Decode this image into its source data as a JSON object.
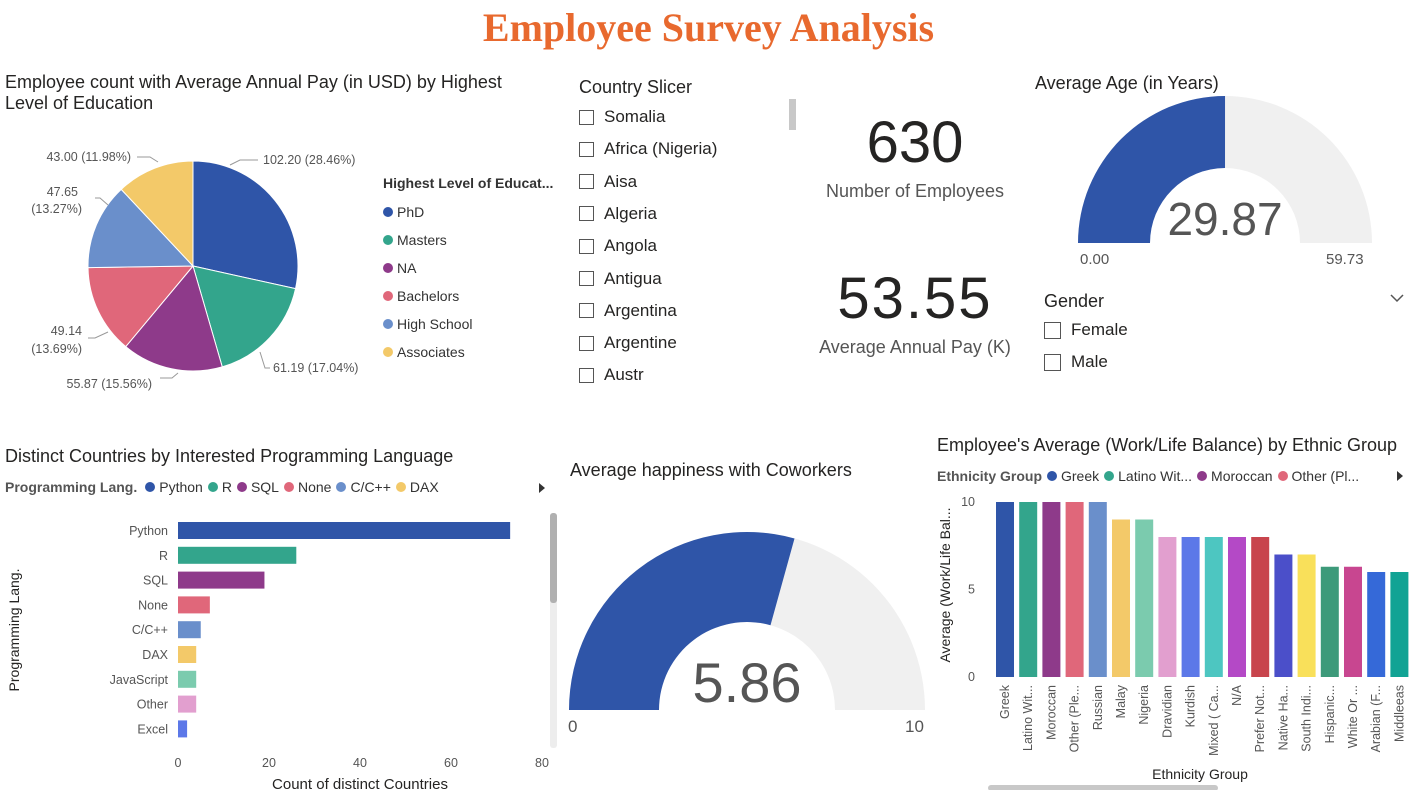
{
  "page": {
    "title": "Employee Survey Analysis"
  },
  "education_pie": {
    "title_line1": "Employee count with Average Annual Pay (in USD) by Highest",
    "title_line2": "Level of Education",
    "legend_title": "Highest Level of Educat...",
    "labels": [
      "102.20 (28.46%)",
      "61.19 (17.04%)",
      "55.87 (15.56%)",
      "49.14",
      "(13.69%)",
      "47.65",
      "(13.27%)",
      "43.00 (11.98%)"
    ]
  },
  "country_slicer": {
    "title": "Country Slicer",
    "items": [
      "Somalia",
      "Africa (Nigeria)",
      "Aisa",
      "Algeria",
      "Angola",
      "Antigua",
      "Argentina",
      "Argentine",
      "Austr"
    ]
  },
  "kpis": {
    "employees_value": "630",
    "employees_label": "Number of Employees",
    "pay_value": "53.55",
    "pay_label": "Average Annual Pay (K)"
  },
  "age_gauge": {
    "title": "Average Age (in Years)",
    "value": 29.87,
    "value_text": "29.87",
    "min": 0,
    "max": 59.73,
    "min_text": "0.00",
    "max_text": "59.73"
  },
  "gender_slicer": {
    "title": "Gender",
    "items": [
      "Female",
      "Male"
    ]
  },
  "lang_chart": {
    "title": "Distinct Countries by Interested Programming Language",
    "legend_title": "Programming Lang.",
    "ylabel": "Programming Lang.",
    "xlabel": "Count of distinct Countries",
    "ticks": [
      "0",
      "20",
      "40",
      "60",
      "80"
    ]
  },
  "happiness_gauge": {
    "title": "Average happiness with Coworkers",
    "value": 5.86,
    "value_text": "5.86",
    "min": 0,
    "max": 10,
    "min_text": "0",
    "max_text": "10"
  },
  "wlb_chart": {
    "title": "Employee's Average (Work/Life Balance) by Ethnic Group",
    "legend_title": "Ethnicity Group",
    "legend_items": [
      "Greek",
      "Latino Wit...",
      "Moroccan",
      "Other (Pl..."
    ],
    "ylabel": "Average (Work/Life Bal...",
    "xlabel": "Ethnicity Group",
    "ticks": [
      "0",
      "5",
      "10"
    ]
  },
  "chart_data": [
    {
      "type": "pie",
      "categories": [
        "PhD",
        "Masters",
        "NA",
        "Bachelors",
        "High School",
        "Associates"
      ],
      "values": [
        102.2,
        61.19,
        55.87,
        49.14,
        47.65,
        43.0
      ],
      "percents": [
        28.46,
        17.04,
        15.56,
        13.69,
        13.27,
        11.98
      ],
      "colors": [
        "#2F55A8",
        "#33A58C",
        "#8E3A8A",
        "#E0677A",
        "#6A8FCB",
        "#F3C969"
      ]
    },
    {
      "type": "bar",
      "orientation": "horizontal",
      "categories": [
        "Python",
        "R",
        "SQL",
        "None",
        "C/C++",
        "DAX",
        "JavaScript",
        "Other",
        "Excel"
      ],
      "values": [
        73,
        26,
        19,
        7,
        5,
        4,
        4,
        4,
        2
      ],
      "colors": [
        "#2F55A8",
        "#33A58C",
        "#8E3A8A",
        "#E0677A",
        "#6A8FCB",
        "#F3C969",
        "#7BCBAE",
        "#E29FCF",
        "#5C78E8"
      ],
      "xlim": [
        0,
        80
      ]
    },
    {
      "type": "bar",
      "categories": [
        "Greek",
        "Latino Wit...",
        "Moroccan",
        "Other (Ple...",
        "Russian",
        "Malay",
        "Nigeria",
        "Dravidian",
        "Kurdish",
        "Mixed ( Ca...",
        "N/A",
        "Prefer Not...",
        "Native Ha...",
        "South Indi...",
        "Hispanic...",
        "White Or ...",
        "Arabian (F...",
        "Middleeas"
      ],
      "values": [
        10,
        10,
        10,
        10,
        10,
        9,
        9,
        8,
        8,
        8,
        8,
        8,
        7,
        7,
        6.3,
        6.3,
        6,
        6
      ],
      "colors": [
        "#2F55A8",
        "#33A58C",
        "#8E3A8A",
        "#E0677A",
        "#6A8FCB",
        "#F3C969",
        "#7BCBAE",
        "#E29FCF",
        "#5C78E8",
        "#4DC6C1",
        "#B449C6",
        "#C8454D",
        "#4B4FC9",
        "#F9E05A",
        "#3D9A7A",
        "#C84690",
        "#3569D8",
        "#11A394"
      ],
      "ylim": [
        0,
        10
      ]
    }
  ]
}
